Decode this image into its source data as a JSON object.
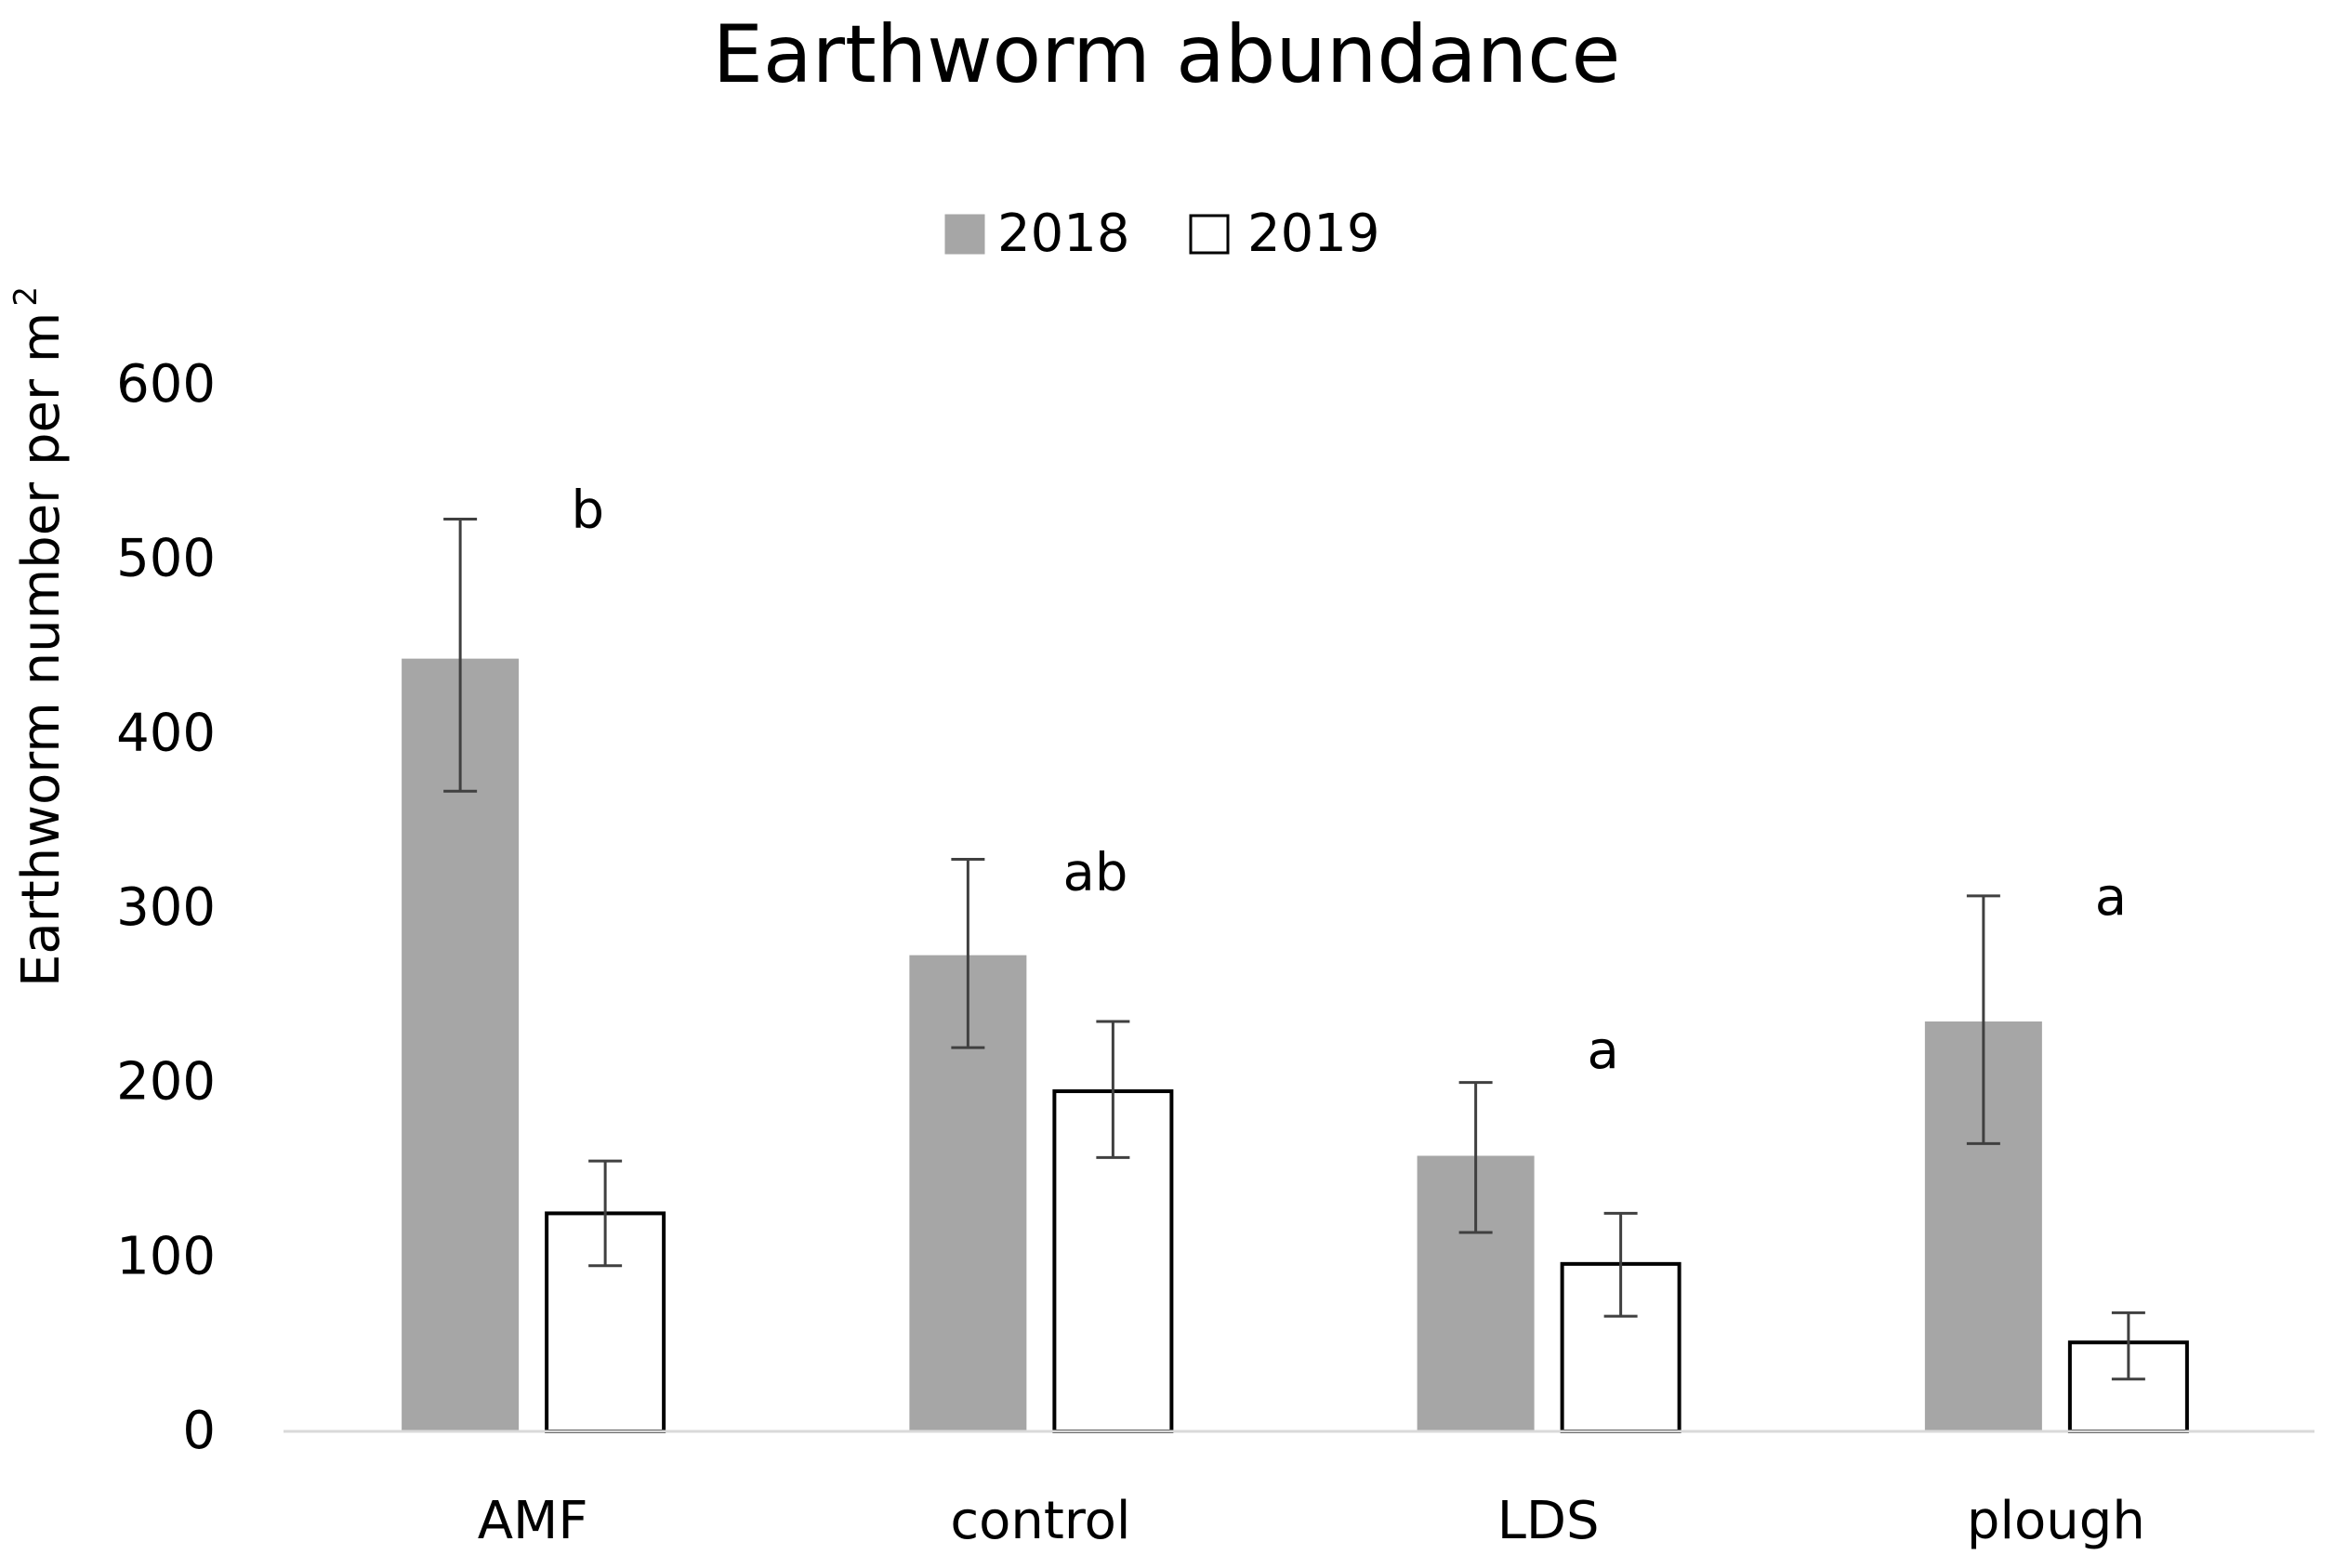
{
  "chart_data": {
    "type": "bar",
    "title": "Earthworm abundance",
    "xlabel": "",
    "ylabel": "Earthworm number per m",
    "ylabel_superscript": "2",
    "ylim": [
      0,
      600
    ],
    "yticks": [
      0,
      100,
      200,
      300,
      400,
      500,
      600
    ],
    "grid": false,
    "legend_position": "top-center",
    "categories": [
      "AMF",
      "control",
      "LDS",
      "plough"
    ],
    "series": [
      {
        "name": "2018",
        "color": "#a6a6a6",
        "border": "#a6a6a6",
        "values": [
          443,
          273,
          158,
          235
        ],
        "error_low": [
          367,
          220,
          114,
          165
        ],
        "error_high": [
          523,
          328,
          200,
          307
        ]
      },
      {
        "name": "2019",
        "color": "#ffffff",
        "border": "#000000",
        "values": [
          125,
          195,
          96,
          51
        ],
        "error_low": [
          95,
          157,
          66,
          30
        ],
        "error_high": [
          155,
          235,
          125,
          68
        ]
      }
    ],
    "annotations": [
      {
        "category": "AMF",
        "text": "b",
        "y": 530
      },
      {
        "category": "control",
        "text": "ab",
        "y": 322
      },
      {
        "category": "LDS",
        "text": "a",
        "y": 220
      },
      {
        "category": "plough",
        "text": "a",
        "y": 308
      }
    ]
  }
}
